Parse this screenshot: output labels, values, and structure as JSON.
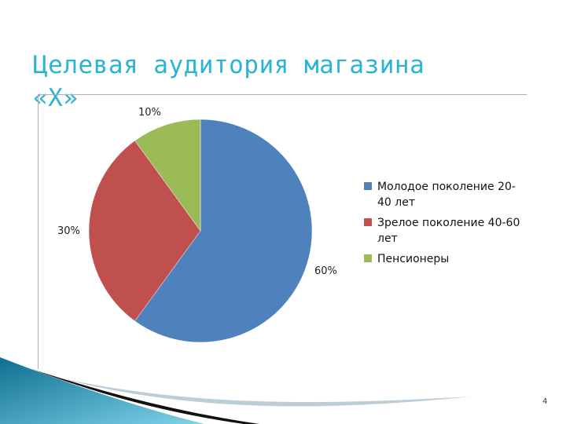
{
  "slide": {
    "title": "Целевая аудитория магазина «Х»",
    "page_number": "4"
  },
  "chart_data": {
    "type": "pie",
    "labels": [
      "Молодое поколение 20-40 лет",
      "Зрелое поколение 40-60 лет",
      "Пенсионеры"
    ],
    "values": [
      60,
      30,
      10
    ],
    "value_labels": [
      "60%",
      "30%",
      "10%"
    ],
    "colors": [
      "#4f81bd",
      "#c0504d",
      "#9bbb59"
    ],
    "legend": {
      "placement": "right",
      "items": [
        {
          "line1": "Молодое поколение 20-",
          "line2": "40 лет"
        },
        {
          "line1": "Зрелое поколение 40-60",
          "line2": "лет"
        },
        {
          "line1": "Пенсионеры",
          "line2": ""
        }
      ]
    }
  }
}
